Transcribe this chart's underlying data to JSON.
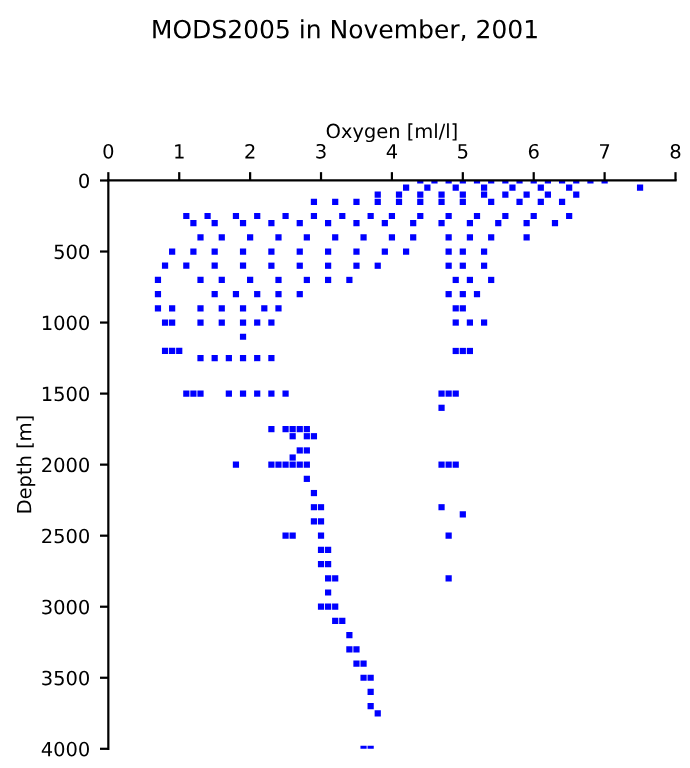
{
  "chart_data": {
    "type": "scatter",
    "title": "MODS2005 in November, 2001",
    "xlabel": "Oxygen [ml/l]",
    "ylabel": "Depth [m]",
    "color": "#0000ff",
    "marker": "square",
    "grid": false,
    "xlim": [
      0,
      8
    ],
    "xticks": [
      0,
      1,
      2,
      3,
      4,
      5,
      6,
      7,
      8
    ],
    "ylim": [
      4000,
      0
    ],
    "yticks": [
      0,
      500,
      1000,
      1500,
      2000,
      2500,
      3000,
      3500,
      4000
    ],
    "series": [
      {
        "x": [
          4.4,
          4.6,
          4.8,
          5.0,
          5.2,
          5.4,
          5.6,
          5.8,
          6.0,
          6.2,
          6.4,
          6.6,
          6.8,
          7.0
        ],
        "values": [
          0,
          0,
          0,
          0,
          0,
          0,
          0,
          0,
          0,
          0,
          0,
          0,
          0,
          0
        ]
      },
      {
        "x": [
          7.5,
          4.2,
          4.5,
          4.9,
          5.3,
          5.7,
          6.1,
          6.5
        ],
        "values": [
          50,
          50,
          50,
          50,
          50,
          50,
          50,
          50
        ]
      },
      {
        "x": [
          3.8,
          4.1,
          4.4,
          4.7,
          5.0,
          5.3,
          5.6,
          5.9,
          6.2,
          6.6
        ],
        "values": [
          100,
          100,
          100,
          100,
          100,
          100,
          100,
          100,
          100,
          100
        ]
      },
      {
        "x": [
          2.9,
          3.2,
          3.5,
          3.8,
          4.1,
          4.4,
          4.7,
          5.0,
          5.4,
          5.8,
          6.1,
          6.4
        ],
        "values": [
          150,
          150,
          150,
          150,
          150,
          150,
          150,
          150,
          150,
          150,
          150,
          150
        ]
      },
      {
        "x": [
          1.1,
          1.4,
          1.8,
          2.1,
          2.5,
          2.9,
          3.3,
          3.7,
          4.0,
          4.4,
          4.8,
          5.2,
          5.6,
          6.0,
          6.5
        ],
        "values": [
          250,
          250,
          250,
          250,
          250,
          250,
          250,
          250,
          250,
          250,
          250,
          250,
          250,
          250,
          250
        ]
      },
      {
        "x": [
          1.2,
          1.5,
          1.9,
          2.3,
          2.7,
          3.1,
          3.5,
          3.9,
          4.3,
          4.7,
          5.1,
          5.5,
          5.9,
          6.3
        ],
        "values": [
          300,
          300,
          300,
          300,
          300,
          300,
          300,
          300,
          300,
          300,
          300,
          300,
          300,
          300
        ]
      },
      {
        "x": [
          1.3,
          1.6,
          2.0,
          2.4,
          2.8,
          3.2,
          3.6,
          4.0,
          4.3,
          4.8,
          5.1,
          5.4,
          5.9
        ],
        "values": [
          400,
          400,
          400,
          400,
          400,
          400,
          400,
          400,
          400,
          400,
          400,
          400,
          400
        ]
      },
      {
        "x": [
          0.9,
          1.2,
          1.5,
          1.9,
          2.3,
          2.7,
          3.1,
          3.5,
          3.9,
          4.2,
          4.8,
          5.0,
          5.3
        ],
        "values": [
          500,
          500,
          500,
          500,
          500,
          500,
          500,
          500,
          500,
          500,
          500,
          500,
          500
        ]
      },
      {
        "x": [
          0.8,
          1.1,
          1.5,
          1.9,
          2.3,
          2.7,
          3.1,
          3.5,
          3.8,
          4.8,
          5.0,
          5.3
        ],
        "values": [
          600,
          600,
          600,
          600,
          600,
          600,
          600,
          600,
          600,
          600,
          600,
          600
        ]
      },
      {
        "x": [
          0.7,
          1.3,
          1.6,
          2.0,
          2.4,
          2.8,
          3.1,
          3.4,
          4.9,
          5.1,
          5.4
        ],
        "values": [
          700,
          700,
          700,
          700,
          700,
          700,
          700,
          700,
          700,
          700,
          700
        ]
      },
      {
        "x": [
          0.7,
          1.5,
          1.8,
          2.1,
          2.4,
          2.7,
          4.8,
          5.0,
          5.2
        ],
        "values": [
          800,
          800,
          800,
          800,
          800,
          800,
          800,
          800,
          800
        ]
      },
      {
        "x": [
          0.7,
          0.9,
          1.3,
          1.6,
          1.9,
          2.2,
          2.4,
          4.9,
          5.0
        ],
        "values": [
          900,
          900,
          900,
          900,
          900,
          900,
          900,
          900,
          900
        ]
      },
      {
        "x": [
          0.8,
          0.9,
          1.3,
          1.6,
          1.9,
          2.1,
          2.3,
          4.9,
          5.1,
          5.3
        ],
        "values": [
          1000,
          1000,
          1000,
          1000,
          1000,
          1000,
          1000,
          1000,
          1000,
          1000
        ]
      },
      {
        "x": [
          1.9,
          0.8,
          0.9,
          1.0,
          4.9,
          5.0,
          5.1
        ],
        "values": [
          1100,
          1200,
          1200,
          1200,
          1200,
          1200,
          1200
        ]
      },
      {
        "x": [
          1.3,
          1.5,
          1.7,
          1.9,
          2.1,
          2.3
        ],
        "values": [
          1250,
          1250,
          1250,
          1250,
          1250,
          1250
        ]
      },
      {
        "x": [
          1.1,
          1.2,
          1.3,
          1.7,
          1.9,
          2.1,
          2.3,
          2.5,
          4.7,
          4.8,
          4.9,
          4.7
        ],
        "values": [
          1500,
          1500,
          1500,
          1500,
          1500,
          1500,
          1500,
          1500,
          1500,
          1500,
          1500,
          1600
        ]
      },
      {
        "x": [
          2.3,
          2.5,
          2.6,
          2.7,
          2.8,
          2.6,
          2.8,
          2.9,
          2.7,
          2.8,
          2.6
        ],
        "values": [
          1750,
          1750,
          1750,
          1750,
          1750,
          1800,
          1800,
          1800,
          1900,
          1900,
          1950
        ]
      },
      {
        "x": [
          1.8,
          2.3,
          2.4,
          2.5,
          2.6,
          2.7,
          2.8,
          4.7,
          4.8,
          4.9
        ],
        "values": [
          2000,
          2000,
          2000,
          2000,
          2000,
          2000,
          2000,
          2000,
          2000,
          2000
        ]
      },
      {
        "x": [
          2.8,
          2.9,
          2.9,
          3.0,
          4.7,
          5.0,
          2.9,
          3.0,
          2.5,
          2.6,
          3.0,
          4.8
        ],
        "values": [
          2100,
          2200,
          2300,
          2300,
          2300,
          2350,
          2400,
          2400,
          2500,
          2500,
          2500,
          2500
        ]
      },
      {
        "x": [
          3.0,
          3.1,
          3.0,
          3.1,
          3.1,
          3.2,
          4.8,
          3.1,
          3.0,
          3.1,
          3.2
        ],
        "values": [
          2600,
          2600,
          2700,
          2700,
          2800,
          2800,
          2800,
          2900,
          3000,
          3000,
          3000
        ]
      },
      {
        "x": [
          3.2,
          3.3,
          3.4,
          3.4,
          3.5,
          3.5,
          3.6,
          3.6,
          3.7,
          3.7,
          3.7,
          3.8,
          3.6,
          3.7
        ],
        "values": [
          3100,
          3100,
          3200,
          3300,
          3300,
          3400,
          3400,
          3500,
          3500,
          3600,
          3700,
          3750,
          4000,
          4000
        ]
      }
    ]
  }
}
